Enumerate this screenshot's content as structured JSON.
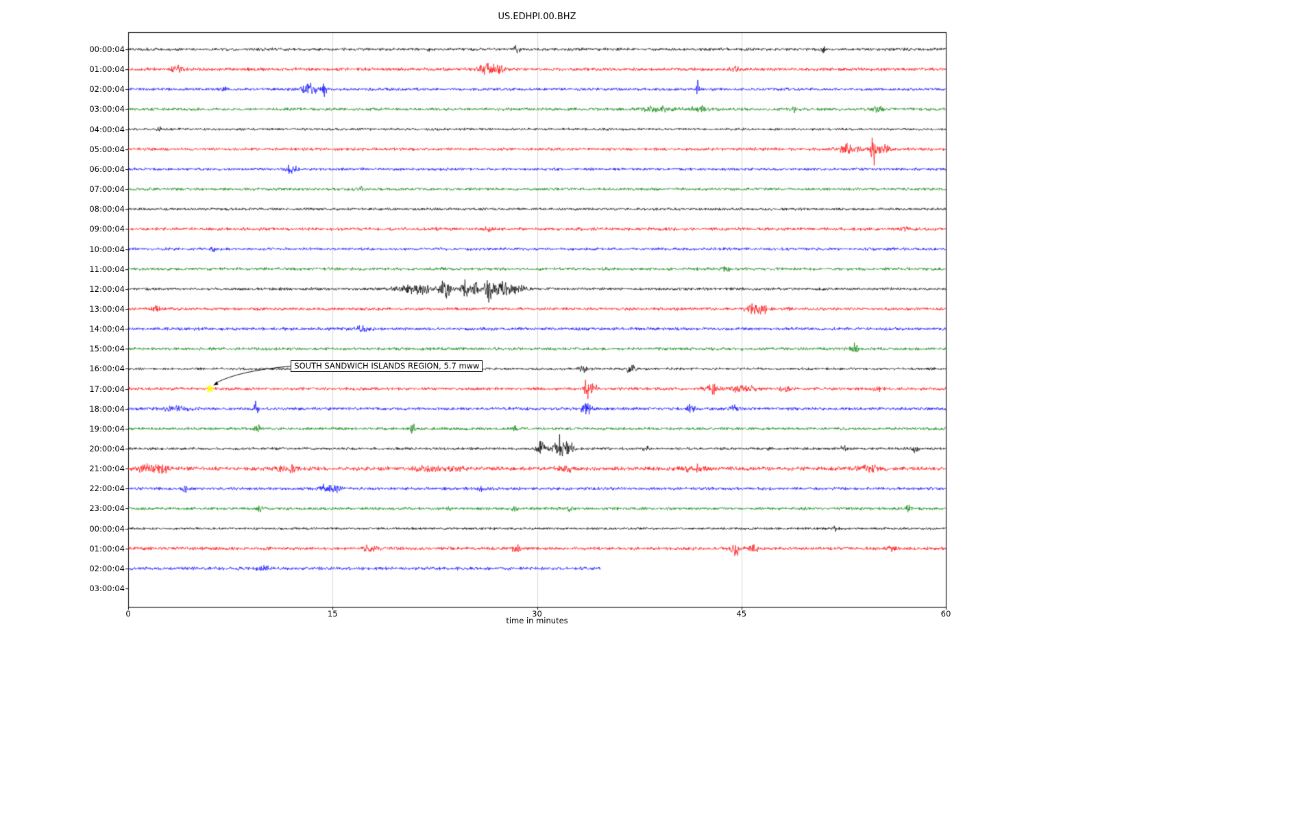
{
  "chart_data": {
    "type": "line",
    "title": "US.EDHPI.00.BHZ",
    "xlabel": "time in minutes",
    "x_range": [
      0,
      60
    ],
    "x_ticks": [
      0,
      15,
      30,
      45,
      60
    ],
    "grid_minutes": [
      15,
      30,
      45
    ],
    "legend": "none",
    "annotation": {
      "text": "SOUTH SANDWICH ISLANDS REGION, 5.7 mww",
      "minute": 6.0,
      "row_index": 17,
      "marker": "yellow-star",
      "marker_color": "#ffff00"
    },
    "rows": [
      {
        "label": "00:00:04",
        "color": "#000000",
        "base": 1.8,
        "end": 60,
        "events": [
          [
            22,
            3,
            0.2
          ],
          [
            28.5,
            4,
            0.25
          ],
          [
            51,
            3,
            0.2
          ]
        ]
      },
      {
        "label": "01:00:04",
        "color": "#ff0000",
        "base": 2.0,
        "end": 60,
        "events": [
          [
            3.6,
            4,
            0.4
          ],
          [
            26.3,
            6,
            0.6
          ],
          [
            27.2,
            5,
            0.4
          ],
          [
            44.5,
            3,
            0.3
          ]
        ]
      },
      {
        "label": "02:00:04",
        "color": "#0000ff",
        "base": 1.8,
        "end": 60,
        "events": [
          [
            7,
            3.5,
            0.2
          ],
          [
            13.3,
            7,
            0.5
          ],
          [
            14.4,
            10,
            0.15
          ],
          [
            41.8,
            9,
            0.12
          ]
        ]
      },
      {
        "label": "03:00:04",
        "color": "#008000",
        "base": 1.8,
        "end": 60,
        "events": [
          [
            39,
            2.5,
            1.5
          ],
          [
            42,
            3,
            0.8
          ],
          [
            48.8,
            4,
            0.2
          ],
          [
            55,
            3,
            0.3
          ]
        ]
      },
      {
        "label": "04:00:04",
        "color": "#000000",
        "base": 1.5,
        "end": 60,
        "events": [
          [
            2.3,
            4,
            0.15
          ]
        ]
      },
      {
        "label": "05:00:04",
        "color": "#ff0000",
        "base": 1.8,
        "end": 60,
        "events": [
          [
            52.8,
            5,
            0.8
          ],
          [
            54.7,
            16,
            0.25
          ],
          [
            55.4,
            6,
            0.4
          ]
        ]
      },
      {
        "label": "06:00:04",
        "color": "#0000ff",
        "base": 1.7,
        "end": 60,
        "events": [
          [
            12,
            8,
            0.3
          ]
        ]
      },
      {
        "label": "07:00:04",
        "color": "#008000",
        "base": 1.7,
        "end": 60,
        "events": [
          [
            17,
            2,
            0.4
          ]
        ]
      },
      {
        "label": "08:00:04",
        "color": "#000000",
        "base": 1.6,
        "end": 60,
        "events": []
      },
      {
        "label": "09:00:04",
        "color": "#ff0000",
        "base": 1.9,
        "end": 60,
        "events": [
          [
            26.5,
            2,
            0.4
          ],
          [
            57,
            2.5,
            0.3
          ]
        ]
      },
      {
        "label": "10:00:04",
        "color": "#0000ff",
        "base": 1.7,
        "end": 60,
        "events": [
          [
            6.3,
            2.5,
            0.2
          ]
        ]
      },
      {
        "label": "11:00:04",
        "color": "#008000",
        "base": 1.8,
        "end": 60,
        "events": [
          [
            44,
            2,
            0.4
          ]
        ]
      },
      {
        "label": "12:00:04",
        "color": "#000000",
        "base": 1.7,
        "end": 60,
        "events": [
          [
            21.5,
            5,
            1.8
          ],
          [
            23.3,
            12,
            0.3
          ],
          [
            24.7,
            18,
            0.25
          ],
          [
            25.5,
            10,
            0.3
          ],
          [
            26.4,
            24,
            0.2
          ],
          [
            27.1,
            8,
            0.8
          ],
          [
            28.5,
            4,
            0.8
          ]
        ]
      },
      {
        "label": "13:00:04",
        "color": "#ff0000",
        "base": 1.8,
        "end": 60,
        "events": [
          [
            2,
            3,
            0.25
          ],
          [
            45.8,
            6,
            0.5
          ],
          [
            46.6,
            4,
            0.4
          ],
          [
            48.6,
            3,
            0.2
          ]
        ]
      },
      {
        "label": "14:00:04",
        "color": "#0000ff",
        "base": 1.9,
        "end": 60,
        "events": [
          [
            17,
            2.5,
            0.8
          ]
        ]
      },
      {
        "label": "15:00:04",
        "color": "#008000",
        "base": 1.8,
        "end": 60,
        "events": [
          [
            53.3,
            6,
            0.25
          ]
        ]
      },
      {
        "label": "16:00:04",
        "color": "#000000",
        "base": 1.5,
        "end": 60,
        "events": [
          [
            33.5,
            4,
            0.4
          ],
          [
            36.9,
            5,
            0.35
          ]
        ]
      },
      {
        "label": "17:00:04",
        "color": "#ff0000",
        "base": 1.8,
        "end": 60,
        "events": [
          [
            33.7,
            12,
            0.25
          ],
          [
            34.1,
            6,
            0.3
          ],
          [
            42.8,
            6,
            0.5
          ],
          [
            45.1,
            4,
            0.8
          ],
          [
            48.2,
            3,
            0.4
          ],
          [
            55,
            2.5,
            0.3
          ]
        ]
      },
      {
        "label": "18:00:04",
        "color": "#0000ff",
        "base": 1.9,
        "end": 60,
        "events": [
          [
            3.5,
            2.5,
            1
          ],
          [
            9.4,
            10,
            0.15
          ],
          [
            33.6,
            8,
            0.3
          ],
          [
            41.3,
            8,
            0.2
          ],
          [
            44.5,
            3,
            0.4
          ]
        ]
      },
      {
        "label": "19:00:04",
        "color": "#008000",
        "base": 1.8,
        "end": 60,
        "events": [
          [
            9.4,
            12,
            0.18
          ],
          [
            20.9,
            8,
            0.15
          ],
          [
            28.4,
            3,
            0.2
          ]
        ]
      },
      {
        "label": "20:00:04",
        "color": "#000000",
        "base": 1.6,
        "end": 60,
        "events": [
          [
            30.4,
            8,
            0.4
          ],
          [
            31.6,
            16,
            0.35
          ],
          [
            32.3,
            8,
            0.4
          ],
          [
            38,
            3,
            0.2
          ],
          [
            47,
            2.5,
            0.2
          ],
          [
            52.5,
            3,
            0.3
          ],
          [
            57.8,
            4,
            0.25
          ]
        ]
      },
      {
        "label": "21:00:04",
        "color": "#ff0000",
        "base": 2.4,
        "end": 60,
        "events": [
          [
            1.5,
            4,
            0.8
          ],
          [
            2.6,
            4,
            0.5
          ],
          [
            11.7,
            4,
            0.7
          ],
          [
            21.8,
            4,
            0.8
          ],
          [
            24,
            3,
            0.5
          ],
          [
            32,
            4,
            0.6
          ],
          [
            41.5,
            4,
            0.6
          ],
          [
            54.5,
            4,
            0.8
          ]
        ]
      },
      {
        "label": "22:00:04",
        "color": "#0000ff",
        "base": 1.8,
        "end": 60,
        "events": [
          [
            4.2,
            5,
            0.2
          ],
          [
            14.5,
            3.5,
            0.6
          ],
          [
            15.3,
            3,
            0.3
          ],
          [
            26,
            2,
            0.3
          ]
        ]
      },
      {
        "label": "23:00:04",
        "color": "#008000",
        "base": 1.8,
        "end": 60,
        "events": [
          [
            9.6,
            4,
            0.25
          ],
          [
            23.5,
            3,
            0.2
          ],
          [
            28.4,
            4,
            0.2
          ],
          [
            32.4,
            4,
            0.2
          ],
          [
            57.3,
            7,
            0.18
          ]
        ]
      },
      {
        "label": "00:00:04",
        "color": "#000000",
        "base": 1.5,
        "end": 60,
        "events": [
          [
            52,
            2,
            0.3
          ]
        ]
      },
      {
        "label": "01:00:04",
        "color": "#ff0000",
        "base": 2.0,
        "end": 60,
        "events": [
          [
            17.8,
            4,
            0.5
          ],
          [
            28.5,
            3,
            0.4
          ],
          [
            44.6,
            8,
            0.3
          ],
          [
            45.9,
            6,
            0.3
          ],
          [
            56,
            2.5,
            0.3
          ]
        ]
      },
      {
        "label": "02:00:04",
        "color": "#0000ff",
        "base": 2.0,
        "end": 34.7,
        "events": [
          [
            10,
            2,
            0.5
          ]
        ]
      },
      {
        "label": "03:00:04",
        "color": "#008000",
        "base": 0,
        "end": 0,
        "events": []
      }
    ]
  }
}
